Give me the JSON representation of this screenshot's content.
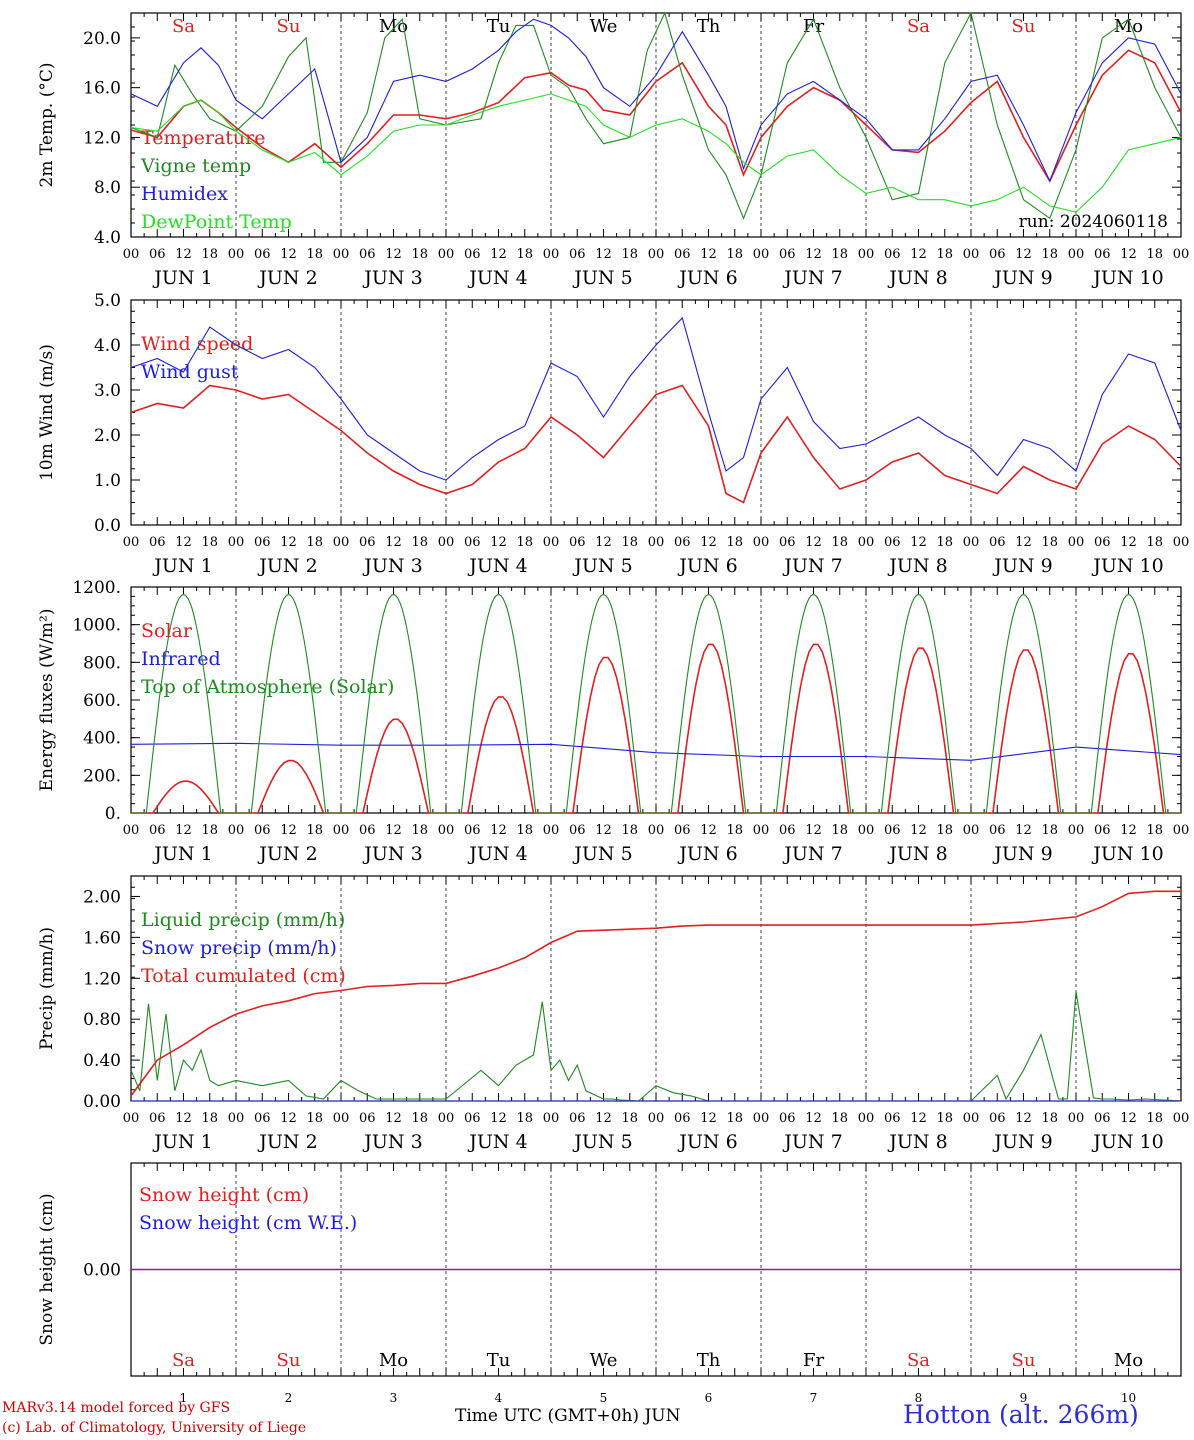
{
  "colors": {
    "red": "#e02020",
    "green": "#1f8a1f",
    "blue": "#1d1de0",
    "lightgreen": "#22e022",
    "purple": "#7a1f9a",
    "axis": "#000000",
    "grid": "#555555"
  },
  "days": {
    "names": [
      "Sa",
      "Su",
      "Mo",
      "Tu",
      "We",
      "Th",
      "Fr",
      "Sa",
      "Su",
      "Mo"
    ],
    "colors": [
      "red",
      "red",
      "black",
      "black",
      "black",
      "black",
      "black",
      "red",
      "red",
      "black"
    ],
    "dates": [
      "JUN  1",
      "JUN  2",
      "JUN  3",
      "JUN  4",
      "JUN  5",
      "JUN  6",
      "JUN  7",
      "JUN  8",
      "JUN  9",
      "JUN 10"
    ],
    "numbers": [
      "1",
      "2",
      "3",
      "4",
      "5",
      "6",
      "7",
      "8",
      "9",
      "10"
    ],
    "hour_ticks": [
      "00",
      "06",
      "12",
      "18"
    ],
    "final_tick": "00"
  },
  "run_label": "run: 2024060118",
  "footer": {
    "credit_line1": "MARv3.14 model forced by GFS",
    "credit_line2": "(c) Lab. of Climatology, University of Liege",
    "x_title": "Time UTC (GMT+0h) JUN",
    "station": "Hotton (alt. 266m)"
  },
  "chart_data": [
    {
      "type": "line",
      "ylabel": "2m Temp. (°C)",
      "ylim": [
        4.0,
        22.0
      ],
      "yticks": [
        "4.0",
        "8.0",
        "12.0",
        "16.0",
        "20.0"
      ],
      "x_unit": "hours since 2024-06-01 00 UTC",
      "xlim": [
        0,
        240
      ],
      "series": [
        {
          "name": "Temperature",
          "color": "red",
          "x": [
            0,
            6,
            12,
            16,
            20,
            24,
            30,
            36,
            42,
            48,
            54,
            60,
            66,
            72,
            78,
            84,
            90,
            96,
            100,
            104,
            108,
            114,
            120,
            126,
            132,
            136,
            140,
            144,
            150,
            156,
            162,
            168,
            174,
            180,
            186,
            192,
            198,
            204,
            210,
            216,
            222,
            228,
            234,
            240
          ],
          "y": [
            12.6,
            12.0,
            14.5,
            15.0,
            14.0,
            12.8,
            11.2,
            10.0,
            11.5,
            9.6,
            11.5,
            13.8,
            13.8,
            13.5,
            14.0,
            14.8,
            16.8,
            17.2,
            16.2,
            15.8,
            14.2,
            13.8,
            16.5,
            18.0,
            14.5,
            13.0,
            9.0,
            12.0,
            14.5,
            16.0,
            15.0,
            13.0,
            11.0,
            10.8,
            12.5,
            14.8,
            16.5,
            12.0,
            8.5,
            13.0,
            17.0,
            19.0,
            18.0,
            14.0
          ]
        },
        {
          "name": "Vigne temp",
          "color": "green",
          "x": [
            0,
            6,
            10,
            14,
            18,
            24,
            30,
            36,
            40,
            44,
            48,
            54,
            58,
            62,
            66,
            72,
            80,
            84,
            88,
            92,
            96,
            100,
            104,
            108,
            114,
            118,
            122,
            126,
            132,
            136,
            140,
            144,
            150,
            156,
            162,
            168,
            174,
            180,
            186,
            192,
            198,
            204,
            210,
            216,
            222,
            228,
            234,
            240
          ],
          "y": [
            12.8,
            12.0,
            17.8,
            15.5,
            13.5,
            12.5,
            14.5,
            18.5,
            20.0,
            10.0,
            10.0,
            14.0,
            20.0,
            21.5,
            13.5,
            13.0,
            13.5,
            18.0,
            21.0,
            21.0,
            17.0,
            16.0,
            13.5,
            11.5,
            12.0,
            19.0,
            22.0,
            17.0,
            11.0,
            9.0,
            5.5,
            9.0,
            18.0,
            21.5,
            16.0,
            12.0,
            7.0,
            7.5,
            18.0,
            22.0,
            13.0,
            7.0,
            5.5,
            11.0,
            20.0,
            21.5,
            16.0,
            12.0
          ]
        },
        {
          "name": "Humidex",
          "color": "blue",
          "x": [
            0,
            6,
            12,
            16,
            20,
            24,
            30,
            36,
            42,
            48,
            54,
            60,
            66,
            72,
            78,
            84,
            88,
            92,
            96,
            100,
            104,
            108,
            114,
            120,
            126,
            132,
            136,
            140,
            144,
            150,
            156,
            162,
            168,
            174,
            180,
            186,
            192,
            198,
            204,
            210,
            216,
            222,
            228,
            234,
            240
          ],
          "y": [
            15.5,
            14.5,
            18.0,
            19.2,
            17.8,
            15.0,
            13.5,
            15.5,
            17.5,
            10.0,
            12.0,
            16.5,
            17.0,
            16.5,
            17.5,
            19.0,
            20.5,
            21.5,
            21.0,
            20.0,
            18.5,
            16.0,
            14.5,
            17.0,
            20.5,
            17.0,
            14.5,
            9.5,
            13.0,
            15.5,
            16.5,
            15.0,
            13.5,
            11.0,
            11.0,
            13.5,
            16.5,
            17.0,
            13.0,
            8.5,
            14.0,
            18.0,
            20.0,
            19.5,
            15.5
          ]
        },
        {
          "name": "DewPoint Temp",
          "color": "lightgreen",
          "x": [
            0,
            6,
            12,
            16,
            20,
            24,
            30,
            36,
            42,
            48,
            54,
            60,
            66,
            72,
            78,
            84,
            90,
            96,
            100,
            104,
            108,
            114,
            120,
            126,
            132,
            136,
            140,
            144,
            150,
            156,
            162,
            168,
            174,
            180,
            186,
            192,
            198,
            204,
            210,
            216,
            222,
            228,
            234,
            240
          ],
          "y": [
            12.8,
            12.5,
            14.5,
            15.0,
            14.0,
            12.5,
            11.0,
            10.0,
            10.8,
            9.0,
            10.5,
            12.5,
            13.0,
            13.0,
            13.8,
            14.5,
            15.0,
            15.5,
            15.0,
            14.5,
            13.0,
            12.0,
            13.0,
            13.5,
            12.5,
            11.5,
            10.0,
            9.0,
            10.5,
            11.0,
            9.0,
            7.5,
            8.0,
            7.0,
            7.0,
            6.5,
            7.0,
            8.0,
            6.5,
            6.0,
            8.0,
            11.0,
            11.5,
            12.0
          ]
        }
      ]
    },
    {
      "type": "line",
      "ylabel": "10m Wind (m/s)",
      "ylim": [
        0.0,
        5.0
      ],
      "yticks": [
        "0.0",
        "1.0",
        "2.0",
        "3.0",
        "4.0",
        "5.0"
      ],
      "xlim": [
        0,
        240
      ],
      "series": [
        {
          "name": "Wind speed",
          "color": "red",
          "x": [
            0,
            6,
            12,
            18,
            24,
            30,
            36,
            42,
            48,
            54,
            60,
            66,
            72,
            78,
            84,
            90,
            96,
            102,
            108,
            114,
            120,
            126,
            132,
            136,
            140,
            144,
            150,
            156,
            162,
            168,
            174,
            180,
            186,
            192,
            198,
            204,
            210,
            216,
            222,
            228,
            234,
            240
          ],
          "y": [
            2.5,
            2.7,
            2.6,
            3.1,
            3.0,
            2.8,
            2.9,
            2.5,
            2.1,
            1.6,
            1.2,
            0.9,
            0.7,
            0.9,
            1.4,
            1.7,
            2.4,
            2.0,
            1.5,
            2.2,
            2.9,
            3.1,
            2.2,
            0.7,
            0.5,
            1.6,
            2.4,
            1.5,
            0.8,
            1.0,
            1.4,
            1.6,
            1.1,
            0.9,
            0.7,
            1.3,
            1.0,
            0.8,
            1.8,
            2.2,
            1.9,
            1.3
          ]
        },
        {
          "name": "Wind gust",
          "color": "blue",
          "x": [
            0,
            6,
            12,
            18,
            24,
            30,
            36,
            42,
            48,
            54,
            60,
            66,
            72,
            78,
            84,
            90,
            96,
            102,
            108,
            114,
            120,
            126,
            132,
            136,
            140,
            144,
            150,
            156,
            162,
            168,
            174,
            180,
            186,
            192,
            198,
            204,
            210,
            216,
            222,
            228,
            234,
            240
          ],
          "y": [
            3.5,
            3.7,
            3.4,
            4.4,
            4.0,
            3.7,
            3.9,
            3.5,
            2.8,
            2.0,
            1.6,
            1.2,
            1.0,
            1.5,
            1.9,
            2.2,
            3.6,
            3.3,
            2.4,
            3.3,
            4.0,
            4.6,
            2.5,
            1.2,
            1.5,
            2.8,
            3.5,
            2.3,
            1.7,
            1.8,
            2.1,
            2.4,
            2.0,
            1.7,
            1.1,
            1.9,
            1.7,
            1.2,
            2.9,
            3.8,
            3.6,
            2.1
          ]
        }
      ]
    },
    {
      "type": "line",
      "ylabel": "Energy fluxes (W/m²)",
      "ylim": [
        0,
        1200
      ],
      "yticks": [
        "0.",
        "200.",
        "400.",
        "600.",
        "800.",
        "1000.",
        "1200."
      ],
      "xlim": [
        0,
        240
      ],
      "series": [
        {
          "name": "Solar",
          "color": "red",
          "x": [
            0,
            12,
            24,
            36,
            48,
            60,
            72,
            84,
            96,
            108,
            120,
            132,
            144,
            156,
            168,
            180,
            192,
            204,
            216,
            228,
            240
          ],
          "peaks": [
            170,
            280,
            500,
            620,
            830,
            900,
            900,
            880,
            870,
            850
          ],
          "note": "daily peak values"
        },
        {
          "name": "Infrared",
          "color": "blue",
          "x": [
            0,
            24,
            48,
            72,
            96,
            120,
            144,
            168,
            192,
            216,
            240
          ],
          "y": [
            365,
            370,
            360,
            360,
            365,
            320,
            300,
            300,
            280,
            350,
            310
          ]
        },
        {
          "name": "Top of Atmosphere (Solar)",
          "color": "green",
          "peak": 1160
        }
      ]
    },
    {
      "type": "line",
      "ylabel": "Precip (mm/h)",
      "ylim": [
        0.0,
        2.2
      ],
      "yticks": [
        "0.00",
        "0.40",
        "0.80",
        "1.20",
        "1.60",
        "2.00"
      ],
      "xlim": [
        0,
        240
      ],
      "series": [
        {
          "name": "Liquid precip (mm/h)",
          "color": "green",
          "x": [
            0,
            2,
            4,
            6,
            8,
            10,
            12,
            14,
            16,
            18,
            20,
            24,
            30,
            36,
            40,
            44,
            48,
            52,
            56,
            66,
            72,
            80,
            84,
            88,
            92,
            94,
            96,
            98,
            100,
            102,
            104,
            108,
            110,
            112,
            116,
            120,
            124,
            128,
            132,
            144,
            168,
            192,
            198,
            200,
            204,
            208,
            212,
            214,
            216,
            220,
            222,
            224,
            228,
            232,
            240
          ],
          "y": [
            0.3,
            0.1,
            0.95,
            0.2,
            0.85,
            0.1,
            0.4,
            0.3,
            0.5,
            0.2,
            0.15,
            0.2,
            0.15,
            0.2,
            0.05,
            0.02,
            0.2,
            0.1,
            0.02,
            0.02,
            0.02,
            0.3,
            0.15,
            0.35,
            0.45,
            0.97,
            0.3,
            0.4,
            0.2,
            0.35,
            0.1,
            0.02,
            0.02,
            0.01,
            0.0,
            0.15,
            0.08,
            0.05,
            0.0,
            0.0,
            0.0,
            0.0,
            0.25,
            0.02,
            0.3,
            0.65,
            0.02,
            0.02,
            1.07,
            0.03,
            0.02,
            0.02,
            0.01,
            0.02,
            0.0
          ]
        },
        {
          "name": "Snow precip (mm/h)",
          "color": "blue",
          "x": [
            0,
            240
          ],
          "y": [
            0,
            0
          ]
        },
        {
          "name": "Total cumulated (cm)",
          "color": "red",
          "x": [
            0,
            6,
            12,
            18,
            24,
            30,
            36,
            42,
            48,
            54,
            60,
            66,
            72,
            78,
            84,
            90,
            96,
            102,
            108,
            114,
            120,
            126,
            132,
            144,
            168,
            192,
            204,
            216,
            222,
            228,
            234,
            240
          ],
          "y": [
            0.05,
            0.4,
            0.55,
            0.72,
            0.85,
            0.93,
            0.98,
            1.05,
            1.08,
            1.12,
            1.13,
            1.15,
            1.15,
            1.22,
            1.3,
            1.4,
            1.55,
            1.66,
            1.67,
            1.68,
            1.69,
            1.71,
            1.72,
            1.72,
            1.72,
            1.72,
            1.75,
            1.8,
            1.9,
            2.03,
            2.05,
            2.05
          ]
        }
      ]
    },
    {
      "type": "line",
      "ylabel": "Snow height (cm)",
      "ylim": [
        -1,
        1
      ],
      "yticks": [
        "0.00"
      ],
      "xlim": [
        0,
        240
      ],
      "series": [
        {
          "name": "Snow height (cm)",
          "color": "red",
          "x": [
            0,
            240
          ],
          "y": [
            0,
            0
          ]
        },
        {
          "name": "Snow height (cm W.E.)",
          "color": "blue",
          "x": [
            0,
            240
          ],
          "y": [
            0,
            0
          ]
        }
      ]
    }
  ]
}
